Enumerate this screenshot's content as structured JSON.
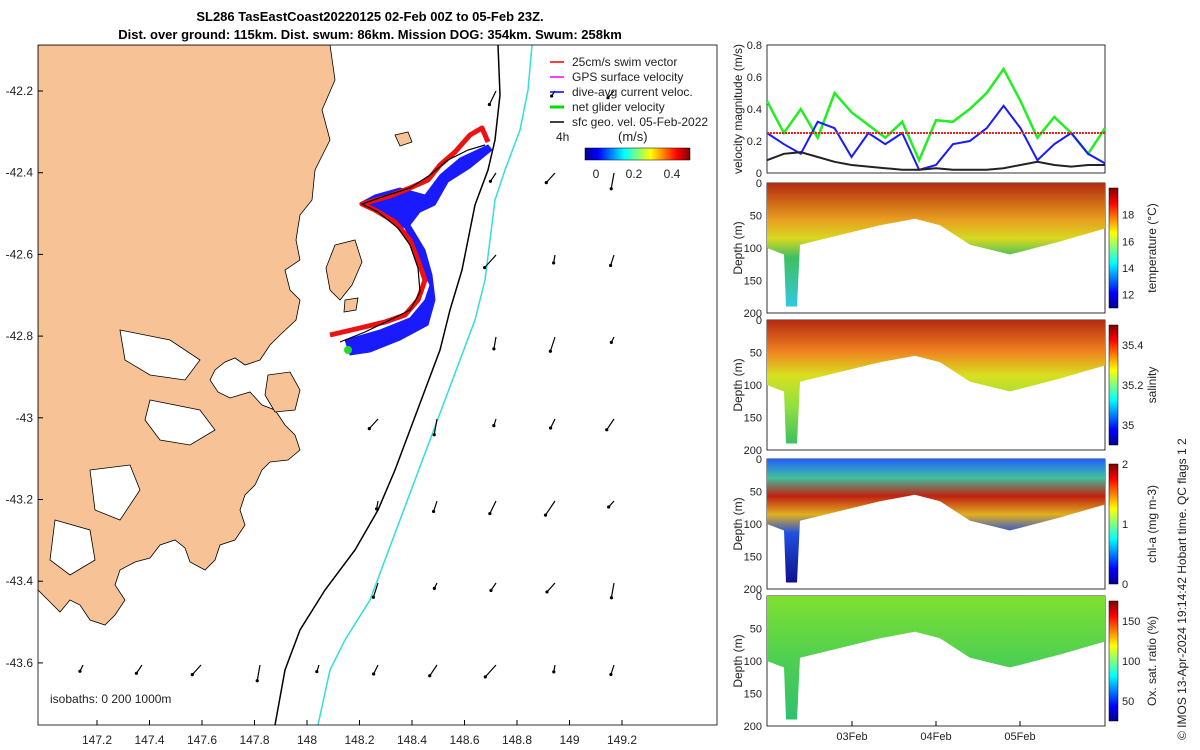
{
  "title": {
    "line1": "SL286 TasEastCoast20220125 02-Feb 00Z to 05-Feb 23Z.",
    "line2": "Dist. over ground: 115km. Dist. swum: 86km. Mission DOG: 354km. Swum: 258km"
  },
  "map": {
    "x_ticks": [
      "147.2",
      "147.4",
      "147.6",
      "147.8",
      "148",
      "148.2",
      "148.4",
      "148.6",
      "148.8",
      "149",
      "149.2"
    ],
    "y_ticks": [
      "-42.2",
      "-42.4",
      "-42.6",
      "-42.8",
      "-43",
      "-43.2",
      "-43.4",
      "-43.6"
    ],
    "isobaths_label": "isobaths: 0   200  1000m",
    "time_marker": "4h",
    "colorbar_unit": "(m/s)",
    "colorbar_ticks": [
      "0",
      "0.2",
      "0.4"
    ],
    "legend": [
      {
        "label": "25cm/s swim vector",
        "color": "#ff0000"
      },
      {
        "label": "GPS surface velocity",
        "color": "#ff00ff"
      },
      {
        "label": "dive-avg current veloc.",
        "color": "#0000ff"
      },
      {
        "label": "net glider velocity",
        "color": "#00dd00"
      },
      {
        "label": "sfc geo. vel. 05-Feb-2022",
        "color": "#000000"
      }
    ],
    "colors": {
      "land": "#f7c396",
      "isobath_200": "#000000",
      "isobath_1000": "#33dddd"
    }
  },
  "chart_data": [
    {
      "type": "line",
      "name": "velocity",
      "ylabel": "velocity magnitude (m/s)",
      "ylim": [
        0,
        0.8
      ],
      "yticks": [
        "0",
        "0.2",
        "0.4",
        "0.6",
        "0.8"
      ],
      "x": [
        0,
        0.05,
        0.1,
        0.15,
        0.2,
        0.25,
        0.3,
        0.35,
        0.4,
        0.45,
        0.5,
        0.55,
        0.6,
        0.65,
        0.7,
        0.75,
        0.8,
        0.85,
        0.9,
        0.95,
        1.0
      ],
      "series": [
        {
          "name": "net glider velocity",
          "color": "#22ee22",
          "values": [
            0.45,
            0.25,
            0.4,
            0.22,
            0.5,
            0.38,
            0.3,
            0.22,
            0.32,
            0.08,
            0.33,
            0.32,
            0.4,
            0.5,
            0.65,
            0.45,
            0.22,
            0.35,
            0.25,
            0.12,
            0.28
          ]
        },
        {
          "name": "dive-avg current",
          "color": "#1a1aff",
          "values": [
            0.25,
            0.18,
            0.12,
            0.32,
            0.28,
            0.1,
            0.25,
            0.18,
            0.25,
            0.02,
            0.05,
            0.18,
            0.2,
            0.28,
            0.42,
            0.28,
            0.08,
            0.18,
            0.25,
            0.12,
            0.06
          ]
        },
        {
          "name": "swim",
          "color": "#ee2222",
          "values": [
            0.25,
            0.25,
            0.25,
            0.25,
            0.25,
            0.25,
            0.25,
            0.25,
            0.25,
            0.25,
            0.25,
            0.25,
            0.25,
            0.25,
            0.25,
            0.25,
            0.25,
            0.25,
            0.25,
            0.25,
            0.25
          ]
        },
        {
          "name": "sfc geo",
          "color": "#222222",
          "values": [
            0.08,
            0.12,
            0.13,
            0.1,
            0.07,
            0.05,
            0.04,
            0.03,
            0.02,
            0.02,
            0.03,
            0.02,
            0.02,
            0.02,
            0.03,
            0.05,
            0.07,
            0.05,
            0.04,
            0.05,
            0.05
          ]
        }
      ]
    },
    {
      "type": "heatmap",
      "name": "temperature",
      "ylabel": "Depth (m)",
      "ylim": [
        200,
        0
      ],
      "yticks": [
        "0",
        "50",
        "100",
        "150",
        "200"
      ],
      "cbar_label": "temperature (°C)",
      "cbar_ticks": [
        "12",
        "14",
        "16",
        "18"
      ],
      "cbar_range": [
        11,
        20
      ]
    },
    {
      "type": "heatmap",
      "name": "salinity",
      "ylabel": "Depth (m)",
      "ylim": [
        200,
        0
      ],
      "yticks": [
        "0",
        "50",
        "100",
        "150",
        "200"
      ],
      "cbar_label": "salinity",
      "cbar_ticks": [
        "35",
        "35.2",
        "35.4"
      ],
      "cbar_range": [
        34.9,
        35.5
      ]
    },
    {
      "type": "heatmap",
      "name": "chl-a",
      "ylabel": "Depth (m)",
      "ylim": [
        200,
        0
      ],
      "yticks": [
        "0",
        "50",
        "100",
        "150",
        "200"
      ],
      "cbar_label": "chl-a (mg m-3)",
      "cbar_ticks": [
        "0",
        "1",
        "2"
      ],
      "cbar_range": [
        0,
        2
      ]
    },
    {
      "type": "heatmap",
      "name": "oxygen",
      "ylabel": "Depth (m)",
      "ylim": [
        200,
        0
      ],
      "yticks": [
        "0",
        "50",
        "100",
        "150",
        "200"
      ],
      "cbar_label": "Ox. sat. ratio (%)",
      "cbar_ticks": [
        "50",
        "100",
        "150"
      ],
      "cbar_range": [
        25,
        175
      ]
    }
  ],
  "time_axis": [
    "03Feb",
    "04Feb",
    "05Feb"
  ],
  "side_note": "© IMOS 13-Apr-2024 19:14:42 Hobart time. QC flags 1  2"
}
